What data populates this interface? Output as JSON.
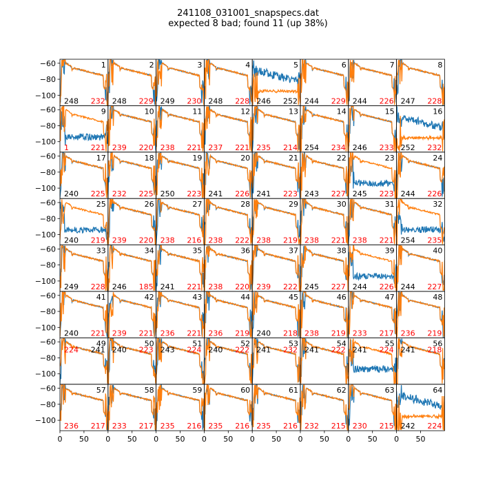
{
  "title": "241108_031001_snapspecs.dat",
  "subtitle": "expected 8 bad; found 11 (up 38%)",
  "colors": {
    "series_a": "#1f77b4",
    "series_b": "#ff7f0e",
    "bad_label": "#ff0000",
    "label": "#000000"
  },
  "chart_data": {
    "type": "line",
    "grid": "8x8 small multiples",
    "xlim": [
      0,
      100
    ],
    "ylim": [
      -113,
      -55
    ],
    "x_ticks": [
      0,
      50
    ],
    "y_ticks": [
      -60,
      -80,
      -100
    ],
    "panels": [
      {
        "id": "1",
        "a": "248",
        "b": "232",
        "a_red": false,
        "b_red": true,
        "lab_top": false,
        "shape": "normal"
      },
      {
        "id": "2",
        "a": "248",
        "b": "229",
        "a_red": false,
        "b_red": true,
        "lab_top": false,
        "shape": "normal"
      },
      {
        "id": "3",
        "a": "249",
        "b": "230",
        "a_red": false,
        "b_red": true,
        "lab_top": false,
        "shape": "normal"
      },
      {
        "id": "4",
        "a": "248",
        "b": "228",
        "a_red": false,
        "b_red": true,
        "lab_top": false,
        "shape": "normal"
      },
      {
        "id": "5",
        "a": "246",
        "b": "252",
        "a_red": false,
        "b_red": false,
        "lab_top": false,
        "shape": "bad_b"
      },
      {
        "id": "6",
        "a": "244",
        "b": "229",
        "a_red": false,
        "b_red": true,
        "lab_top": false,
        "shape": "normal"
      },
      {
        "id": "7",
        "a": "244",
        "b": "226",
        "a_red": false,
        "b_red": true,
        "lab_top": false,
        "shape": "normal"
      },
      {
        "id": "8",
        "a": "247",
        "b": "228",
        "a_red": false,
        "b_red": true,
        "lab_top": false,
        "shape": "normal"
      },
      {
        "id": "9",
        "a": "1",
        "b": "221",
        "a_red": true,
        "b_red": true,
        "lab_top": false,
        "shape": "bad_a"
      },
      {
        "id": "10",
        "a": "239",
        "b": "220",
        "a_red": true,
        "b_red": true,
        "lab_top": false,
        "shape": "normal"
      },
      {
        "id": "11",
        "a": "238",
        "b": "221",
        "a_red": true,
        "b_red": true,
        "lab_top": false,
        "shape": "normal"
      },
      {
        "id": "12",
        "a": "237",
        "b": "221",
        "a_red": true,
        "b_red": true,
        "lab_top": false,
        "shape": "normal"
      },
      {
        "id": "13",
        "a": "235",
        "b": "214",
        "a_red": true,
        "b_red": true,
        "lab_top": false,
        "shape": "normal"
      },
      {
        "id": "14",
        "a": "254",
        "b": "234",
        "a_red": false,
        "b_red": true,
        "lab_top": false,
        "shape": "normal"
      },
      {
        "id": "15",
        "a": "246",
        "b": "233",
        "a_red": false,
        "b_red": true,
        "lab_top": false,
        "shape": "normal"
      },
      {
        "id": "16",
        "a": "252",
        "b": "232",
        "a_red": false,
        "b_red": true,
        "lab_top": false,
        "shape": "bad_b"
      },
      {
        "id": "17",
        "a": "240",
        "b": "225",
        "a_red": false,
        "b_red": true,
        "lab_top": false,
        "shape": "normal"
      },
      {
        "id": "18",
        "a": "232",
        "b": "225",
        "a_red": true,
        "b_red": true,
        "lab_top": false,
        "shape": "normal"
      },
      {
        "id": "19",
        "a": "250",
        "b": "223",
        "a_red": false,
        "b_red": true,
        "lab_top": false,
        "shape": "normal"
      },
      {
        "id": "20",
        "a": "241",
        "b": "226",
        "a_red": false,
        "b_red": true,
        "lab_top": false,
        "shape": "normal"
      },
      {
        "id": "21",
        "a": "241",
        "b": "223",
        "a_red": false,
        "b_red": true,
        "lab_top": false,
        "shape": "normal"
      },
      {
        "id": "22",
        "a": "243",
        "b": "227",
        "a_red": false,
        "b_red": true,
        "lab_top": false,
        "shape": "normal"
      },
      {
        "id": "23",
        "a": "245",
        "b": "223",
        "a_red": false,
        "b_red": true,
        "lab_top": false,
        "shape": "bad_a"
      },
      {
        "id": "24",
        "a": "244",
        "b": "226",
        "a_red": false,
        "b_red": true,
        "lab_top": false,
        "shape": "normal"
      },
      {
        "id": "25",
        "a": "240",
        "b": "219",
        "a_red": false,
        "b_red": true,
        "lab_top": false,
        "shape": "bad_a"
      },
      {
        "id": "26",
        "a": "239",
        "b": "220",
        "a_red": true,
        "b_red": true,
        "lab_top": false,
        "shape": "normal"
      },
      {
        "id": "27",
        "a": "238",
        "b": "216",
        "a_red": true,
        "b_red": true,
        "lab_top": false,
        "shape": "normal"
      },
      {
        "id": "28",
        "a": "238",
        "b": "222",
        "a_red": true,
        "b_red": true,
        "lab_top": false,
        "shape": "normal"
      },
      {
        "id": "29",
        "a": "238",
        "b": "219",
        "a_red": true,
        "b_red": true,
        "lab_top": false,
        "shape": "normal"
      },
      {
        "id": "30",
        "a": "238",
        "b": "221",
        "a_red": true,
        "b_red": true,
        "lab_top": false,
        "shape": "normal"
      },
      {
        "id": "31",
        "a": "238",
        "b": "221",
        "a_red": true,
        "b_red": true,
        "lab_top": false,
        "shape": "normal"
      },
      {
        "id": "32",
        "a": "254",
        "b": "235",
        "a_red": false,
        "b_red": true,
        "lab_top": false,
        "shape": "bad_a"
      },
      {
        "id": "33",
        "a": "249",
        "b": "228",
        "a_red": false,
        "b_red": true,
        "lab_top": false,
        "shape": "normal"
      },
      {
        "id": "34",
        "a": "246",
        "b": "185",
        "a_red": false,
        "b_red": true,
        "lab_top": false,
        "shape": "normal"
      },
      {
        "id": "35",
        "a": "241",
        "b": "221",
        "a_red": false,
        "b_red": true,
        "lab_top": false,
        "shape": "normal"
      },
      {
        "id": "36",
        "a": "238",
        "b": "220",
        "a_red": true,
        "b_red": true,
        "lab_top": false,
        "shape": "normal"
      },
      {
        "id": "37",
        "a": "239",
        "b": "222",
        "a_red": true,
        "b_red": true,
        "lab_top": false,
        "shape": "normal"
      },
      {
        "id": "38",
        "a": "245",
        "b": "227",
        "a_red": false,
        "b_red": true,
        "lab_top": false,
        "shape": "normal"
      },
      {
        "id": "39",
        "a": "244",
        "b": "226",
        "a_red": false,
        "b_red": true,
        "lab_top": false,
        "shape": "bad_a"
      },
      {
        "id": "40",
        "a": "244",
        "b": "227",
        "a_red": false,
        "b_red": true,
        "lab_top": false,
        "shape": "normal"
      },
      {
        "id": "41",
        "a": "240",
        "b": "221",
        "a_red": false,
        "b_red": true,
        "lab_top": false,
        "shape": "normal"
      },
      {
        "id": "42",
        "a": "239",
        "b": "221",
        "a_red": true,
        "b_red": true,
        "lab_top": false,
        "shape": "normal"
      },
      {
        "id": "43",
        "a": "236",
        "b": "221",
        "a_red": true,
        "b_red": true,
        "lab_top": false,
        "shape": "normal"
      },
      {
        "id": "44",
        "a": "236",
        "b": "219",
        "a_red": true,
        "b_red": true,
        "lab_top": false,
        "shape": "normal"
      },
      {
        "id": "45",
        "a": "240",
        "b": "218",
        "a_red": false,
        "b_red": true,
        "lab_top": false,
        "shape": "normal"
      },
      {
        "id": "46",
        "a": "238",
        "b": "219",
        "a_red": true,
        "b_red": true,
        "lab_top": false,
        "shape": "normal"
      },
      {
        "id": "47",
        "a": "233",
        "b": "217",
        "a_red": true,
        "b_red": true,
        "lab_top": false,
        "shape": "normal"
      },
      {
        "id": "48",
        "a": "236",
        "b": "219",
        "a_red": true,
        "b_red": true,
        "lab_top": false,
        "shape": "normal"
      },
      {
        "id": "49",
        "a": "224",
        "b": "241",
        "a_red": true,
        "b_red": false,
        "lab_top": true,
        "shape": "normal"
      },
      {
        "id": "50",
        "a": "240",
        "b": "223",
        "a_red": false,
        "b_red": true,
        "lab_top": true,
        "shape": "normal"
      },
      {
        "id": "51",
        "a": "243",
        "b": "224",
        "a_red": false,
        "b_red": true,
        "lab_top": true,
        "shape": "normal"
      },
      {
        "id": "52",
        "a": "240",
        "b": "222",
        "a_red": false,
        "b_red": true,
        "lab_top": true,
        "shape": "normal"
      },
      {
        "id": "53",
        "a": "241",
        "b": "232",
        "a_red": false,
        "b_red": true,
        "lab_top": true,
        "shape": "normal"
      },
      {
        "id": "54",
        "a": "241",
        "b": "222",
        "a_red": false,
        "b_red": true,
        "lab_top": true,
        "shape": "normal"
      },
      {
        "id": "55",
        "a": "241",
        "b": "224",
        "a_red": false,
        "b_red": true,
        "lab_top": true,
        "shape": "bad_a"
      },
      {
        "id": "56",
        "a": "241",
        "b": "218",
        "a_red": false,
        "b_red": true,
        "lab_top": true,
        "shape": "normal"
      },
      {
        "id": "57",
        "a": "236",
        "b": "217",
        "a_red": true,
        "b_red": true,
        "lab_top": false,
        "shape": "normal"
      },
      {
        "id": "58",
        "a": "233",
        "b": "217",
        "a_red": true,
        "b_red": true,
        "lab_top": false,
        "shape": "normal"
      },
      {
        "id": "59",
        "a": "235",
        "b": "216",
        "a_red": true,
        "b_red": true,
        "lab_top": false,
        "shape": "normal"
      },
      {
        "id": "60",
        "a": "235",
        "b": "216",
        "a_red": true,
        "b_red": true,
        "lab_top": false,
        "shape": "normal"
      },
      {
        "id": "61",
        "a": "235",
        "b": "216",
        "a_red": true,
        "b_red": true,
        "lab_top": false,
        "shape": "normal"
      },
      {
        "id": "62",
        "a": "232",
        "b": "215",
        "a_red": true,
        "b_red": true,
        "lab_top": false,
        "shape": "normal"
      },
      {
        "id": "63",
        "a": "230",
        "b": "215",
        "a_red": true,
        "b_red": true,
        "lab_top": false,
        "shape": "normal"
      },
      {
        "id": "64",
        "a": "242",
        "b": "224",
        "a_red": false,
        "b_red": true,
        "lab_top": false,
        "shape": "bad_b"
      }
    ]
  }
}
